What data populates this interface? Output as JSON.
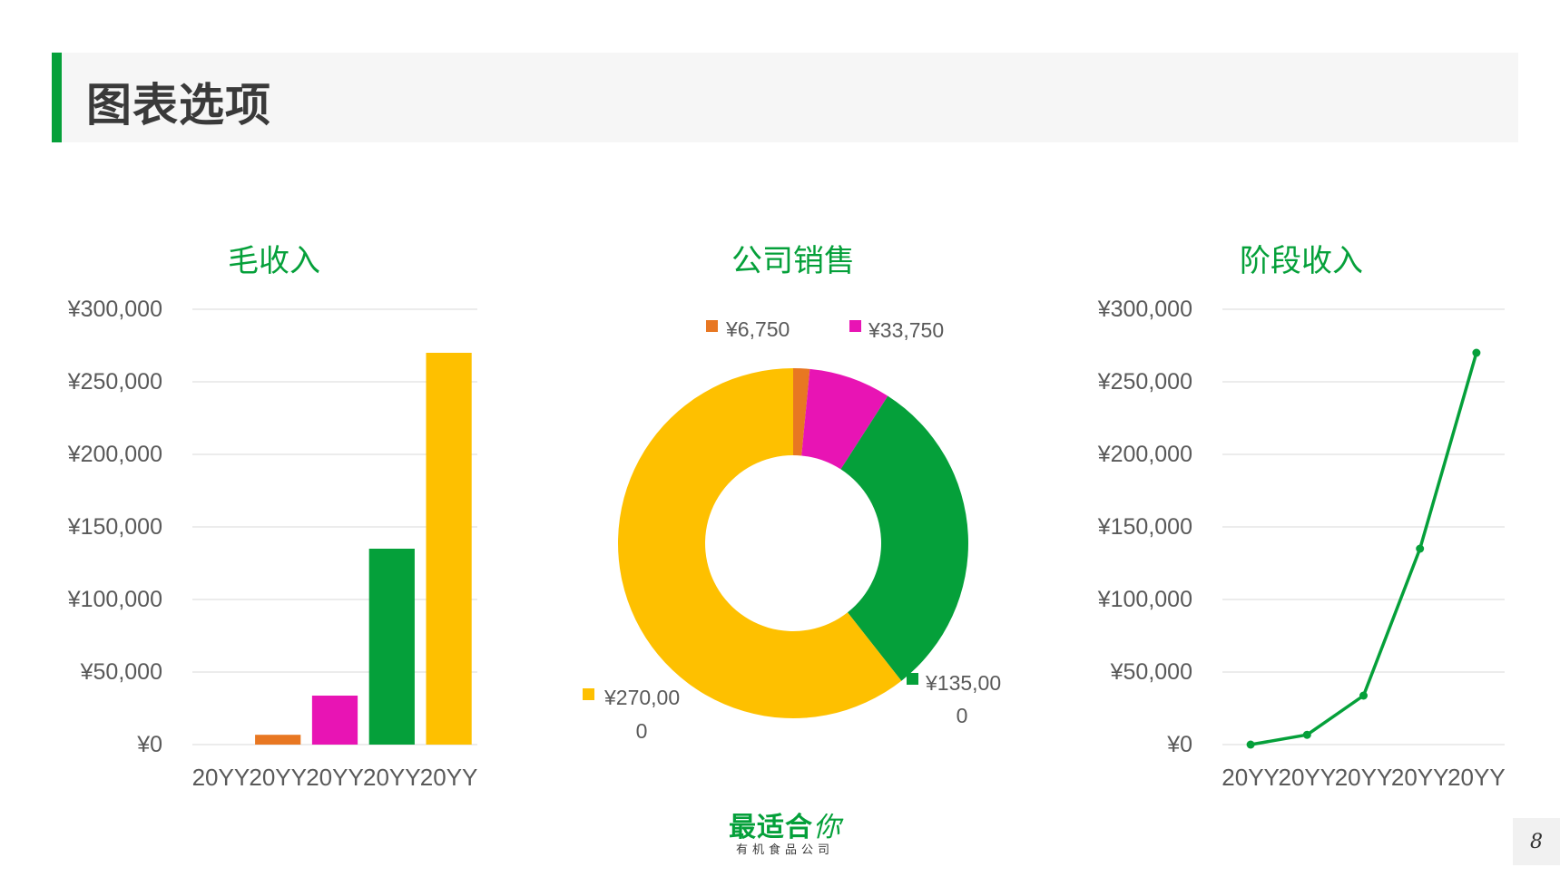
{
  "header": {
    "title": "图表选项"
  },
  "logo": {
    "main": "最适合",
    "accent": "你",
    "sub": "有机食品公司"
  },
  "page_number": "8",
  "colors": {
    "orange": "#e87722",
    "magenta": "#e814b4",
    "green": "#05a03a",
    "yellow": "#fec000",
    "grid": "#d9d9d9",
    "axis_text": "#595959",
    "title_green": "#05a03a"
  },
  "chart_data": [
    {
      "type": "bar",
      "title": "毛收入",
      "categories": [
        "20YY",
        "20YY",
        "20YY",
        "20YY",
        "20YY"
      ],
      "values": [
        0,
        6750,
        33750,
        135000,
        270000
      ],
      "value_colors": [
        "#e87722",
        "#e87722",
        "#e814b4",
        "#05a03a",
        "#fec000"
      ],
      "y_ticks": [
        "¥0",
        "¥50,000",
        "¥100,000",
        "¥150,000",
        "¥200,000",
        "¥250,000",
        "¥300,000"
      ],
      "ylim": [
        0,
        300000
      ],
      "grid": true
    },
    {
      "type": "pie",
      "title": "公司销售",
      "donut": true,
      "slices": [
        {
          "value": 6750,
          "label": "¥6,750",
          "color": "#e87722"
        },
        {
          "value": 33750,
          "label": "¥33,750",
          "color": "#e814b4"
        },
        {
          "value": 135000,
          "label_lines": [
            "¥135,00",
            "0"
          ],
          "color": "#05a03a"
        },
        {
          "value": 270000,
          "label_lines": [
            "¥270,00",
            "0"
          ],
          "color": "#fec000"
        }
      ]
    },
    {
      "type": "line",
      "title": "阶段收入",
      "categories": [
        "20YY",
        "20YY",
        "20YY",
        "20YY",
        "20YY"
      ],
      "values": [
        0,
        6750,
        33750,
        135000,
        270000
      ],
      "color": "#05a03a",
      "y_ticks": [
        "¥0",
        "¥50,000",
        "¥100,000",
        "¥150,000",
        "¥200,000",
        "¥250,000",
        "¥300,000"
      ],
      "ylim": [
        0,
        300000
      ],
      "grid": true
    }
  ]
}
